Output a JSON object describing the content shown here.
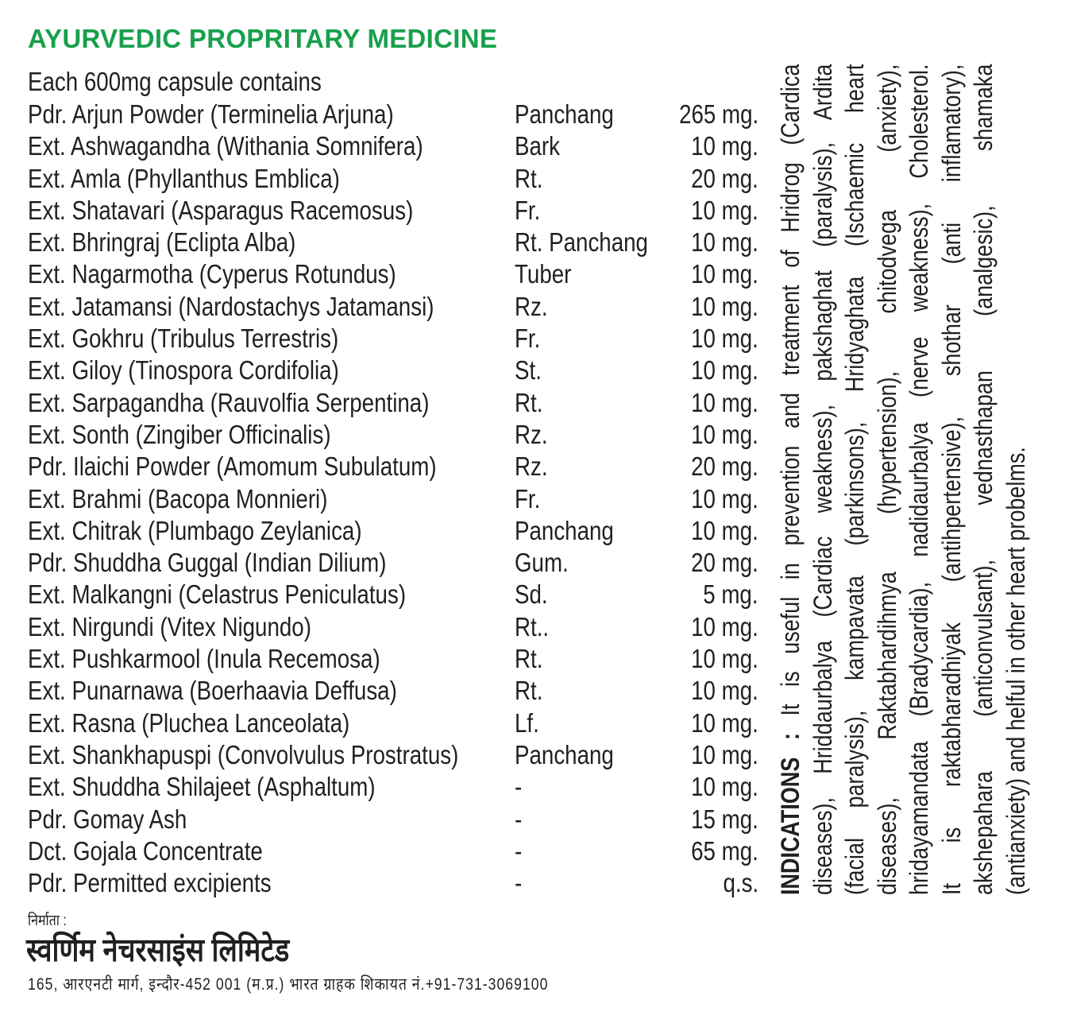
{
  "title": "AYURVEDIC PROPRITARY MEDICINE",
  "intro": "Each 600mg capsule contains",
  "colors": {
    "title": "#18a04c",
    "text": "#231f20"
  },
  "ingredients": [
    {
      "name": "Pdr. Arjun Powder (Terminelia Arjuna)",
      "part": "Panchang",
      "qty": "265 mg."
    },
    {
      "name": "Ext. Ashwagandha (Withania Somnifera)",
      "part": "Bark",
      "qty": "10 mg."
    },
    {
      "name": "Ext. Amla (Phyllanthus Emblica)",
      "part": "Rt.",
      "qty": "20 mg."
    },
    {
      "name": "Ext. Shatavari (Asparagus Racemosus)",
      "part": "Fr.",
      "qty": "10 mg."
    },
    {
      "name": "Ext. Bhringraj  (Eclipta Alba)",
      "part": "Rt. Panchang",
      "qty": "10 mg."
    },
    {
      "name": "Ext. Nagarmotha (Cyperus Rotundus)",
      "part": "Tuber",
      "qty": "10 mg."
    },
    {
      "name": "Ext. Jatamansi (Nardostachys Jatamansi)",
      "part": "Rz.",
      "qty": "10 mg."
    },
    {
      "name": "Ext. Gokhru (Tribulus Terrestris)",
      "part": "Fr.",
      "qty": "10 mg."
    },
    {
      "name": "Ext. Giloy (Tinospora Cordifolia)",
      "part": "St.",
      "qty": "10 mg."
    },
    {
      "name": "Ext. Sarpagandha (Rauvolfia Serpentina)",
      "part": "Rt.",
      "qty": "10 mg."
    },
    {
      "name": "Ext. Sonth (Zingiber Officinalis)",
      "part": "Rz.",
      "qty": "10 mg."
    },
    {
      "name": "Pdr. Ilaichi  Powder (Amomum Subulatum)",
      "part": "Rz.",
      "qty": "20 mg."
    },
    {
      "name": "Ext. Brahmi  (Bacopa Monnieri)",
      "part": "Fr.",
      "qty": "10 mg."
    },
    {
      "name": "Ext. Chitrak (Plumbago Zeylanica)",
      "part": "Panchang",
      "qty": "10 mg."
    },
    {
      "name": "Pdr. Shuddha Guggal (Indian Dilium)",
      "part": "Gum.",
      "qty": "20 mg."
    },
    {
      "name": "Ext. Malkangni (Celastrus Peniculatus)",
      "part": "Sd.",
      "qty": "5 mg."
    },
    {
      "name": "Ext. Nirgundi (Vitex  Nigundo)",
      "part": "Rt..",
      "qty": "10 mg."
    },
    {
      "name": "Ext. Pushkarmool (Inula Recemosa)",
      "part": "Rt.",
      "qty": "10 mg."
    },
    {
      "name": "Ext. Punarnawa (Boerhaavia Deffusa)",
      "part": "Rt.",
      "qty": "10 mg."
    },
    {
      "name": "Ext. Rasna (Pluchea  Lanceolata)",
      "part": "Lf.",
      "qty": "10 mg."
    },
    {
      "name": "Ext. Shankhapuspi (Convolvulus Prostratus)",
      "part": "Panchang",
      "qty": "10 mg."
    },
    {
      "name": "Ext. Shuddha Shilajeet (Asphaltum)",
      "part": "-",
      "qty": "10 mg."
    },
    {
      "name": "Pdr. Gomay Ash",
      "part": "-",
      "qty": "15 mg."
    },
    {
      "name": "Dct. Gojala Concentrate",
      "part": "-",
      "qty": "65 mg."
    },
    {
      "name": "Pdr. Permitted excipients",
      "part": "-",
      "qty": "q.s."
    }
  ],
  "indications": {
    "heading": "INDICATIONS :",
    "lines": [
      " It is useful in prevention and treatment of Hridrog (Cardica",
      "diseases), Hriddaurbalya (Cardiac weakness), pakshaghat (paralysis), Ardita",
      "(facial paralysis), kampavata (parkinsons), Hridyaghata (Ischaemic heart",
      "diseases), Raktabhardihmya (hypertension), chitodvega (anxiety),",
      "hridayamandata (Bradycardia), nadidaurbalya (nerve weakness), Cholesterol.",
      "It is raktabharadhiyak (antihpertensive), shothar (anti inflamatory),",
      "akshepahara (anticonvulsant), vednasthapan (analgesic), shamaka",
      "(antianxiety) and helful in other heart probelms."
    ]
  },
  "manufacturer": {
    "label": "निर्माता :",
    "name": "स्वर्णिम नेचरसाइंस लिमिटेड",
    "address": "165, आरएनटी मार्ग, इन्दौर-452 001 (म.प्र.) भारत ग्राहक शिकायत नं.+91-731-3069100"
  }
}
